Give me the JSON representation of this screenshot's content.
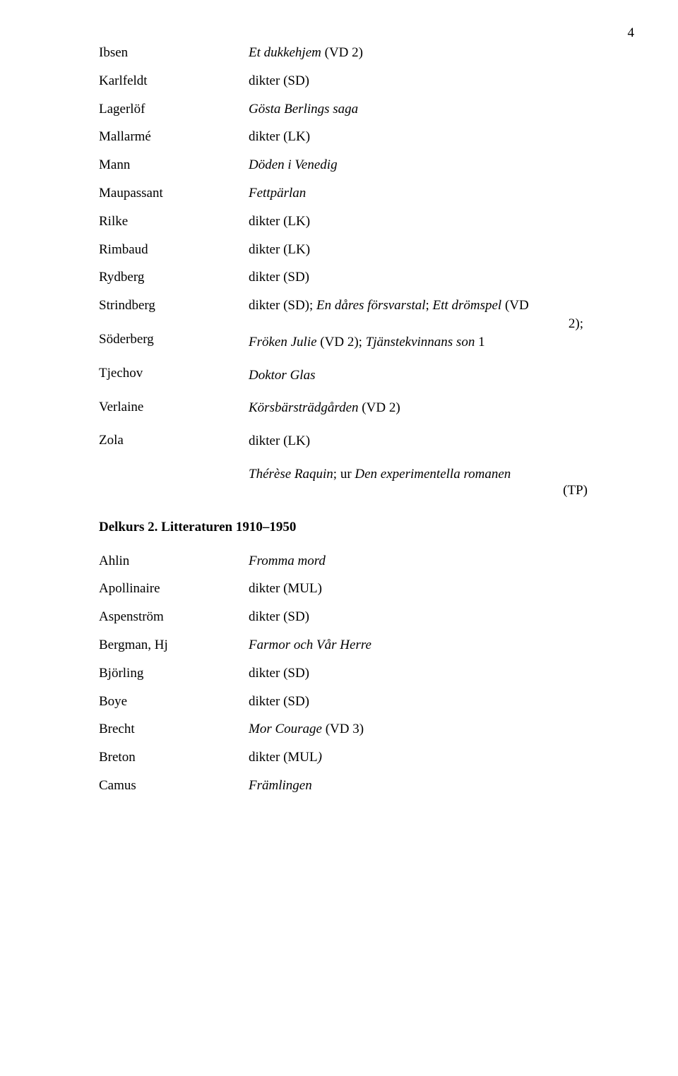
{
  "page_number": "4",
  "section1": {
    "rows": [
      {
        "author": "Ibsen",
        "work_italic": "Et dukkehjem",
        "suffix": " (VD 2)"
      },
      {
        "author": "Karlfeldt",
        "plain": "dikter (SD)"
      },
      {
        "author": "Lagerlöf",
        "all_italic": "Gösta Berlings saga"
      },
      {
        "author": "Mallarmé",
        "plain": "dikter (LK)"
      },
      {
        "author": "Mann",
        "all_italic": "Döden i Venedig"
      },
      {
        "author": "Maupassant",
        "all_italic": "Fettpärlan"
      },
      {
        "author": "Rilke",
        "plain": "dikter (LK)"
      },
      {
        "author": "Rimbaud",
        "plain": "dikter (LK)"
      },
      {
        "author": "Rydberg",
        "plain": "dikter (SD)"
      }
    ],
    "strindberg": {
      "names": [
        "Strindberg",
        "Söderberg",
        "Tjechov",
        "Verlaine",
        "Zola"
      ],
      "line1_pre": "dikter (SD); ",
      "line1_it1": "En dåres försvarstal",
      "line1_mid": "; ",
      "line1_it2": "Ett drömspel",
      "line1_post": " (VD",
      "line1b": "2);",
      "line2_it": "Fröken Julie",
      "line2_mid": " (VD 2); ",
      "line2_it2": "Tjänstekvinnans son",
      "line2_post": " 1",
      "line3_it": "Doktor Glas",
      "line4_it": "Körsbärsträdgården",
      "line4_post": " (VD 2)",
      "line5": "dikter (LK)",
      "line6_it": "Thérèse Raquin",
      "line6_mid": "; ur ",
      "line6_it2": "Den experimentella romanen",
      "line6_tp": "(TP)"
    }
  },
  "heading2": "Delkurs 2. Litteraturen 1910–1950",
  "section2": {
    "rows": [
      {
        "author": "Ahlin",
        "all_italic": "Fromma mord"
      },
      {
        "author": "Apollinaire",
        "plain": "dikter (MUL)"
      },
      {
        "author": "Aspenström",
        "plain": "dikter (SD)"
      },
      {
        "author": "Bergman, Hj",
        "all_italic": "Farmor och Vår Herre"
      },
      {
        "author": "Björling",
        "plain": "dikter (SD)"
      },
      {
        "author": "Boye",
        "plain": "dikter (SD)"
      },
      {
        "author": "Brecht",
        "work_italic": "Mor Courage",
        "suffix": " (VD 3)"
      },
      {
        "author": "Breton",
        "mixed_pre": "dikter (MUL",
        "mixed_it": ")",
        "mixed_post": ""
      },
      {
        "author": "Camus",
        "all_italic": "Främlingen"
      }
    ]
  }
}
